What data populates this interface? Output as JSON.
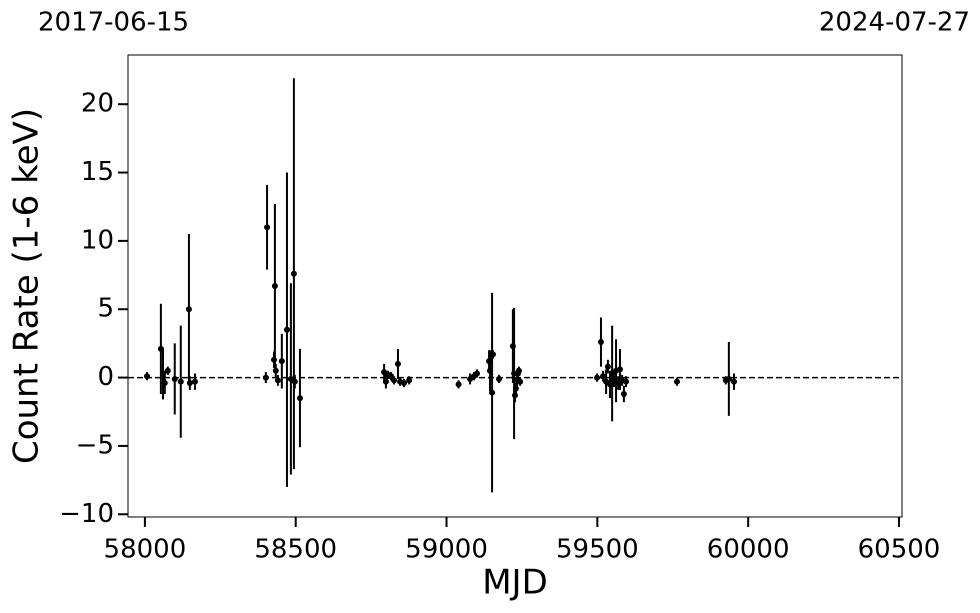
{
  "chart_data": {
    "type": "scatter",
    "xlabel": "MJD",
    "ylabel": "Count Rate (1-6 keV)",
    "annotations": [
      "2017-06-15",
      "2024-07-27"
    ],
    "xlim": [
      57944,
      60510
    ],
    "ylim": [
      -10.2,
      23.6
    ],
    "xticks": [
      58000,
      58500,
      59000,
      59500,
      60000,
      60500
    ],
    "yticks": [
      {
        "value": -10,
        "label": "−10"
      },
      {
        "value": -5,
        "label": "−5"
      },
      0,
      5,
      10,
      15,
      20
    ],
    "hline": 0,
    "series": [
      {
        "color": "#000000",
        "x": [
          58007,
          58053,
          58060,
          58066,
          58076,
          58099,
          58119,
          58146,
          58149,
          58166,
          58401,
          58405,
          58428,
          58431,
          58434,
          58441,
          58454,
          58471,
          58484,
          58494,
          58497,
          58514,
          58793,
          58799,
          58806,
          58816,
          58826,
          58839,
          58846,
          58859,
          58876,
          59040,
          59078,
          59091,
          59101,
          59141,
          59144,
          59151,
          59154,
          59174,
          59220,
          59224,
          59227,
          59230,
          59234,
          59237,
          59240,
          59244,
          59499,
          59512,
          59519,
          59529,
          59535,
          59542,
          59549,
          59555,
          59562,
          59569,
          59575,
          59582,
          59588,
          59595,
          59764,
          59926,
          59936,
          59953
        ],
        "values": [
          0.1,
          2.1,
          0.3,
          -0.4,
          0.5,
          -0.1,
          -0.3,
          5.0,
          -0.4,
          -0.3,
          0.0,
          11.0,
          1.3,
          6.7,
          0.5,
          -0.2,
          1.2,
          3.5,
          -0.1,
          7.6,
          -0.3,
          -1.5,
          0.4,
          -0.3,
          0.2,
          0.1,
          -0.2,
          1.0,
          -0.3,
          -0.4,
          -0.2,
          -0.5,
          -0.1,
          0.1,
          0.3,
          1.2,
          0.5,
          -1.1,
          1.7,
          -0.1,
          2.3,
          0.3,
          -1.3,
          -0.8,
          -0.2,
          0.3,
          0.5,
          -0.3,
          0.0,
          2.6,
          0.1,
          -0.3,
          0.8,
          -0.5,
          0.3,
          -0.2,
          0.5,
          -0.4,
          0.6,
          -0.2,
          -1.2,
          -0.3,
          -0.3,
          -0.2,
          -0.1,
          -0.3
        ],
        "errors": [
          0.3,
          3.3,
          1.9,
          0.8,
          0.3,
          2.6,
          4.1,
          5.5,
          0.5,
          0.6,
          0.4,
          3.1,
          0.6,
          6.0,
          0.5,
          0.4,
          2.0,
          11.5,
          7.0,
          14.3,
          0.5,
          3.6,
          0.6,
          0.5,
          0.3,
          0.3,
          0.3,
          1.1,
          0.3,
          0.3,
          0.3,
          0.3,
          0.4,
          0.3,
          0.3,
          0.8,
          1.5,
          7.3,
          0.3,
          0.3,
          2.7,
          4.8,
          0.5,
          0.4,
          0.5,
          0.4,
          0.3,
          0.3,
          0.3,
          1.8,
          0.4,
          0.9,
          0.5,
          1.0,
          3.5,
          0.5,
          2.3,
          0.5,
          1.5,
          0.4,
          0.6,
          0.4,
          0.3,
          0.3,
          2.7,
          0.6
        ]
      }
    ]
  }
}
